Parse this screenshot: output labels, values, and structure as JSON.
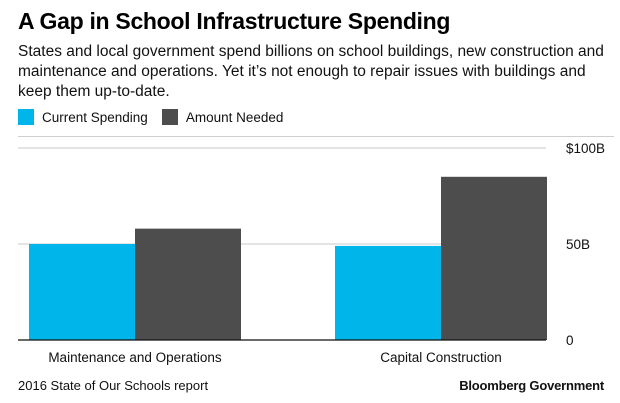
{
  "title": "A Gap in School Infrastructure Spending",
  "subtitle": "States and local government spend billions on school buildings, new construction and maintenance and operations. Yet it’s not enough to repair issues with buildings and keep them up-to-date.",
  "legend": [
    {
      "label": "Current Spending",
      "color": "#00b5e9"
    },
    {
      "label": "Amount Needed",
      "color": "#4d4d4d"
    }
  ],
  "source": "2016 State of Our Schools report",
  "brand": "Bloomberg Government",
  "chart_data": {
    "type": "bar",
    "categories": [
      "Maintenance and Operations",
      "Capital Construction"
    ],
    "series": [
      {
        "name": "Current Spending",
        "values": [
          50,
          49
        ],
        "color": "#00b5e9"
      },
      {
        "name": "Amount Needed",
        "values": [
          58,
          85
        ],
        "color": "#4d4d4d"
      }
    ],
    "ylim": [
      0,
      100
    ],
    "yticks": [
      0,
      50,
      100
    ],
    "ytick_labels": [
      "0",
      "50B",
      "$100B"
    ],
    "y_axis_position": "right",
    "grid": true
  }
}
